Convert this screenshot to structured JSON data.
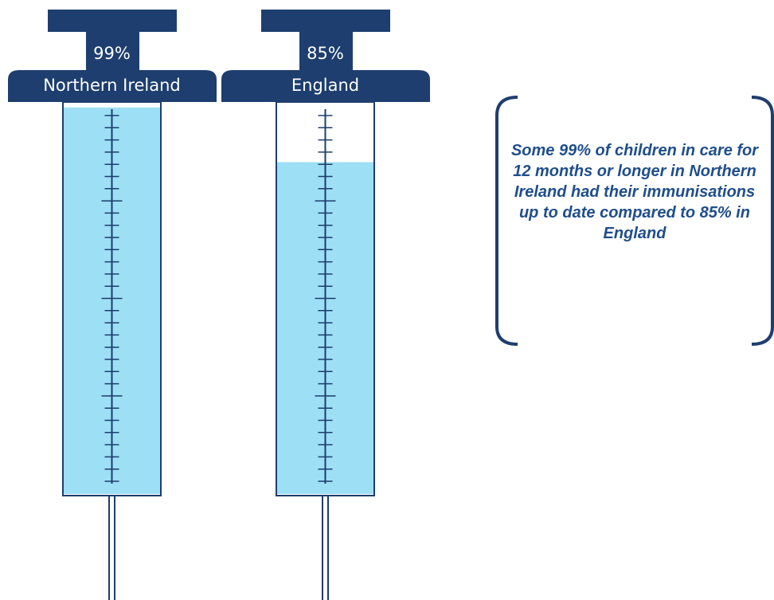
{
  "chart_data": {
    "type": "syringe",
    "categories": [
      "Northern Ireland",
      "England"
    ],
    "values": [
      99,
      85
    ],
    "value_labels": [
      "99%",
      "85%"
    ],
    "ylim": [
      0,
      100
    ],
    "color": "#9ddff5",
    "annotation": "Some 99% of children in care for 12 months or longer in Northern Ireland had their immunisations up to date compared to 85% in England"
  }
}
